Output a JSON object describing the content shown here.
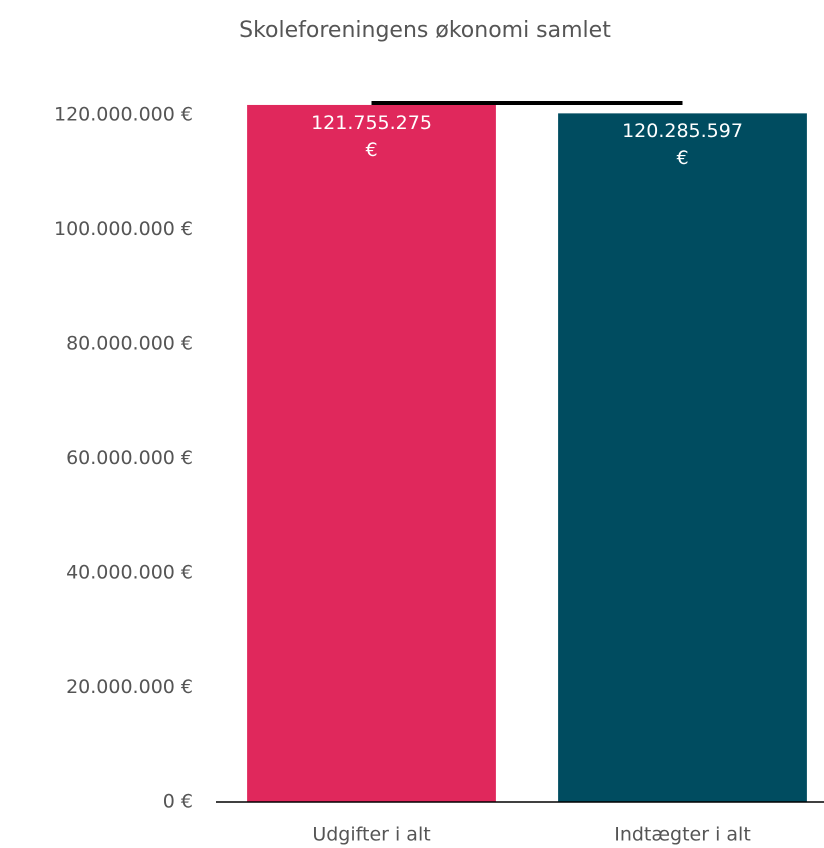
{
  "chart_data": {
    "type": "bar",
    "title": "Skoleforeningens økonomi samlet",
    "categories": [
      "Udgifter i alt",
      "Indtægter i alt"
    ],
    "series": [
      {
        "colors": [
          "#e0285c",
          "#004c60"
        ],
        "values": [
          121755275,
          120285597
        ],
        "value_labels": [
          "121.755.275 €",
          "120.285.597 €"
        ]
      }
    ],
    "ylim": [
      0,
      120000000
    ],
    "yticks": [
      {
        "value": 0,
        "label": "0 €"
      },
      {
        "value": 20000000,
        "label": "20.000.000 €"
      },
      {
        "value": 40000000,
        "label": "40.000.000 €"
      },
      {
        "value": 60000000,
        "label": "60.000.000 €"
      },
      {
        "value": 80000000,
        "label": "80.000.000 €"
      },
      {
        "value": 100000000,
        "label": "100.000.000 €"
      },
      {
        "value": 120000000,
        "label": "120.000.000 €"
      }
    ],
    "grid": false
  }
}
